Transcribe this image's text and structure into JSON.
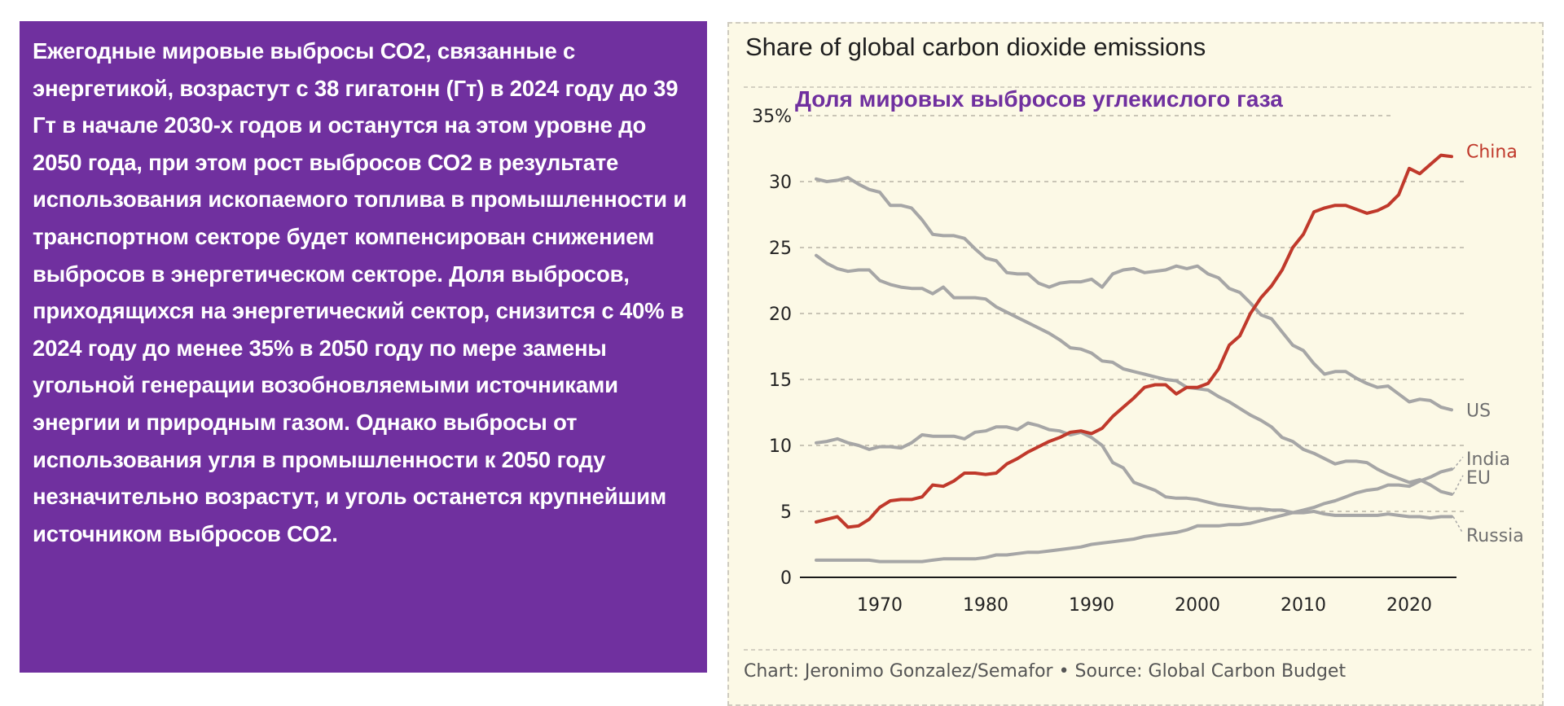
{
  "text_panel": {
    "paragraph": "Ежегодные мировые выбросы СО2, связанные с энергетикой, возрастут с 38 гигатонн (Гт) в 2024 году до 39 Гт в начале 2030-х годов и останутся на этом уровне до 2050 года, при этом рост выбросов СО2 в результате использования ископаемого топлива в промышленности и транспортном секторе будет компенсирован снижением выбросов в энергетическом секторе. Доля выбросов, приходящихся на энергетический сектор, снизится с 40% в 2024 году до менее 35% в 2050 году по мере замены угольной генерации возобновляемыми источниками энергии и природным газом. Однако выбросы от использования угля в промышленности к 2050 году незначительно возрастут, и уголь останется крупнейшим источником выбросов СО2."
  },
  "colors": {
    "text_panel_bg": "#70309f",
    "chart_bg": "#fcf9e6",
    "china": "#c0392b",
    "others": "#a6a6a6"
  },
  "chart_data": {
    "type": "line",
    "title": "Share of global carbon dioxide emissions",
    "subtitle_overlay": "Доля мировых выбросов углекислого газа",
    "footer": "Chart: Jeronimo Gonzalez/Semafor • Source: Global Carbon Budget",
    "xlabel": "",
    "ylabel": "",
    "xlim": [
      1964,
      2024
    ],
    "ylim": [
      0,
      35
    ],
    "x_ticks": [
      "1970",
      "1980",
      "1990",
      "2000",
      "2010",
      "2020"
    ],
    "y_ticks": [
      "0",
      "5",
      "10",
      "15",
      "20",
      "25",
      "30",
      "35%"
    ],
    "grid": true,
    "legend": "inline-right",
    "x_start": 1964,
    "series": [
      {
        "name": "US",
        "highlight": false,
        "values": [
          30.2,
          30.0,
          30.1,
          30.3,
          29.8,
          29.4,
          29.2,
          28.2,
          28.2,
          28.0,
          27.1,
          26.0,
          25.9,
          25.9,
          25.7,
          24.9,
          24.2,
          24.0,
          23.1,
          23.0,
          23.0,
          22.3,
          22.0,
          22.3,
          22.4,
          22.4,
          22.6,
          22.0,
          23.0,
          23.3,
          23.4,
          23.1,
          23.2,
          23.3,
          23.6,
          23.4,
          23.6,
          23.0,
          22.7,
          21.9,
          21.6,
          20.8,
          19.9,
          19.6,
          18.6,
          17.6,
          17.2,
          16.2,
          15.4,
          15.6,
          15.6,
          15.1,
          14.7,
          14.4,
          14.5,
          13.9,
          13.3,
          13.5,
          13.4,
          12.9,
          12.7
        ]
      },
      {
        "name": "EU",
        "highlight": false,
        "values": [
          24.4,
          23.8,
          23.4,
          23.2,
          23.3,
          23.3,
          22.5,
          22.2,
          22.0,
          21.9,
          21.9,
          21.5,
          22.0,
          21.2,
          21.2,
          21.2,
          21.1,
          20.5,
          20.1,
          19.7,
          19.3,
          18.9,
          18.5,
          18.0,
          17.4,
          17.3,
          17.0,
          16.4,
          16.3,
          15.8,
          15.6,
          15.4,
          15.2,
          15.0,
          14.9,
          14.4,
          14.3,
          14.2,
          13.7,
          13.3,
          12.8,
          12.3,
          11.9,
          11.4,
          10.6,
          10.3,
          9.7,
          9.4,
          9.0,
          8.6,
          8.8,
          8.8,
          8.7,
          8.2,
          7.8,
          7.5,
          7.2,
          7.4,
          7.0,
          6.5,
          6.3
        ]
      },
      {
        "name": "Russia",
        "highlight": false,
        "values": [
          10.2,
          10.3,
          10.5,
          10.2,
          10.0,
          9.7,
          9.9,
          9.9,
          9.8,
          10.2,
          10.8,
          10.7,
          10.7,
          10.7,
          10.5,
          11.0,
          11.1,
          11.4,
          11.4,
          11.2,
          11.7,
          11.5,
          11.2,
          11.1,
          10.8,
          11.0,
          10.6,
          10.0,
          8.7,
          8.3,
          7.2,
          6.9,
          6.6,
          6.1,
          6.0,
          6.0,
          5.9,
          5.7,
          5.5,
          5.4,
          5.3,
          5.2,
          5.2,
          5.1,
          5.1,
          4.9,
          4.9,
          5.0,
          4.8,
          4.7,
          4.7,
          4.7,
          4.7,
          4.7,
          4.8,
          4.7,
          4.6,
          4.6,
          4.5,
          4.6,
          4.6
        ]
      },
      {
        "name": "India",
        "highlight": false,
        "values": [
          1.3,
          1.3,
          1.3,
          1.3,
          1.3,
          1.3,
          1.2,
          1.2,
          1.2,
          1.2,
          1.2,
          1.3,
          1.4,
          1.4,
          1.4,
          1.4,
          1.5,
          1.7,
          1.7,
          1.8,
          1.9,
          1.9,
          2.0,
          2.1,
          2.2,
          2.3,
          2.5,
          2.6,
          2.7,
          2.8,
          2.9,
          3.1,
          3.2,
          3.3,
          3.4,
          3.6,
          3.9,
          3.9,
          3.9,
          4.0,
          4.0,
          4.1,
          4.3,
          4.5,
          4.7,
          4.9,
          5.1,
          5.3,
          5.6,
          5.8,
          6.1,
          6.4,
          6.6,
          6.7,
          7.0,
          7.0,
          6.9,
          7.3,
          7.6,
          8.0,
          8.2
        ]
      },
      {
        "name": "China",
        "highlight": true,
        "values": [
          4.2,
          4.4,
          4.6,
          3.8,
          3.9,
          4.4,
          5.3,
          5.8,
          5.9,
          5.9,
          6.1,
          7.0,
          6.9,
          7.3,
          7.9,
          7.9,
          7.8,
          7.9,
          8.6,
          9.0,
          9.5,
          9.9,
          10.3,
          10.6,
          11.0,
          11.1,
          10.9,
          11.3,
          12.2,
          12.9,
          13.6,
          14.4,
          14.6,
          14.6,
          13.9,
          14.4,
          14.4,
          14.7,
          15.8,
          17.6,
          18.3,
          20.0,
          21.2,
          22.1,
          23.3,
          25.0,
          26.0,
          27.7,
          28.0,
          28.2,
          28.2,
          27.9,
          27.6,
          27.8,
          28.2,
          29.0,
          31.0,
          30.6,
          31.3,
          32.0,
          31.9
        ]
      }
    ],
    "label_offsets": {
      "US": 0,
      "EU": 1.3,
      "Russia": -1.4,
      "India": 0.8,
      "China": 0.4
    }
  }
}
